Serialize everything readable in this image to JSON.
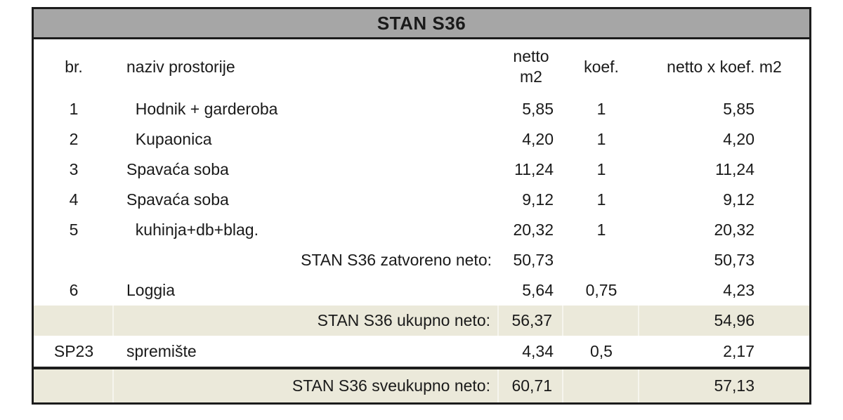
{
  "table": {
    "title": "STAN S36",
    "colors": {
      "title_bg": "#a6a6a6",
      "highlight_bg": "#ebe9da",
      "border": "#1c1c1c",
      "text": "#1a1a1a"
    },
    "header": {
      "br": "br.",
      "naziv": "naziv prostorije",
      "netto": "netto\nm2",
      "koef": "koef.",
      "total": "netto x koef. m2"
    },
    "rows": [
      {
        "br": "1",
        "naziv": "  Hodnik + garderoba",
        "netto": "5,85",
        "koef": "1",
        "total": "5,85"
      },
      {
        "br": "2",
        "naziv": "  Kupaonica",
        "netto": "4,20",
        "koef": "1",
        "total": "4,20"
      },
      {
        "br": "3",
        "naziv": "Spavaća soba",
        "netto": "11,24",
        "koef": "1",
        "total": "11,24"
      },
      {
        "br": "4",
        "naziv": "Spavaća soba",
        "netto": "9,12",
        "koef": "1",
        "total": "9,12"
      },
      {
        "br": "5",
        "naziv": "  kuhinja+db+blag.",
        "netto": "20,32",
        "koef": "1",
        "total": "20,32"
      },
      {
        "br": "",
        "naziv": "STAN S36 zatvoreno neto:",
        "netto": "50,73",
        "koef": "",
        "total": "50,73"
      },
      {
        "br": "6",
        "naziv": "Loggia",
        "netto": "5,64",
        "koef": "0,75",
        "total": "4,23"
      },
      {
        "br": "",
        "naziv": "STAN S36 ukupno neto:",
        "netto": "56,37",
        "koef": "",
        "total": "54,96"
      },
      {
        "br": "SP23",
        "naziv": "spremište",
        "netto": "4,34",
        "koef": "0,5",
        "total": "2,17"
      },
      {
        "br": "",
        "naziv": "STAN S36 sveukupno neto:",
        "netto": "60,71",
        "koef": "",
        "total": "57,13"
      }
    ]
  }
}
